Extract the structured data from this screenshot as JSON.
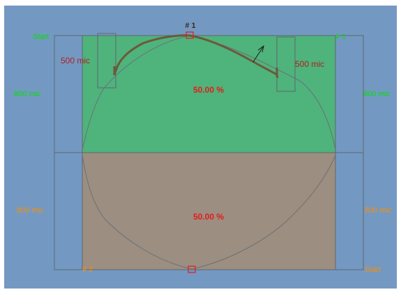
{
  "colors": {
    "canvas_bg": "#7399c2",
    "upper_zone": "#4fb37c",
    "lower_zone": "#9c8e80",
    "line": "#5f6670",
    "profile": "#6b5a3a",
    "percent_text": "#e31b1b",
    "top_label": "#00e000",
    "bottom_label": "#ff8c00",
    "mic_label_top": "#b02020",
    "marker": "#e31b1b"
  },
  "labels": {
    "top_marker": "# 1",
    "upper_left_start": "Start",
    "upper_right_id": "# 1",
    "upper_left_dim": "800 mic",
    "upper_right_dim": "800 mic",
    "inner_left_dim": "500 mic",
    "inner_right_dim": "500 mic",
    "upper_percent": "50.00 %",
    "lower_left_dim": "800 mic",
    "lower_right_dim": "800 mic",
    "lower_percent": "50.00 %",
    "lower_left_id": "# 2",
    "lower_right_start": "Start"
  },
  "zones": [
    {
      "name": "upper",
      "share_percent": 50.0
    },
    {
      "name": "lower",
      "share_percent": 50.0
    }
  ]
}
